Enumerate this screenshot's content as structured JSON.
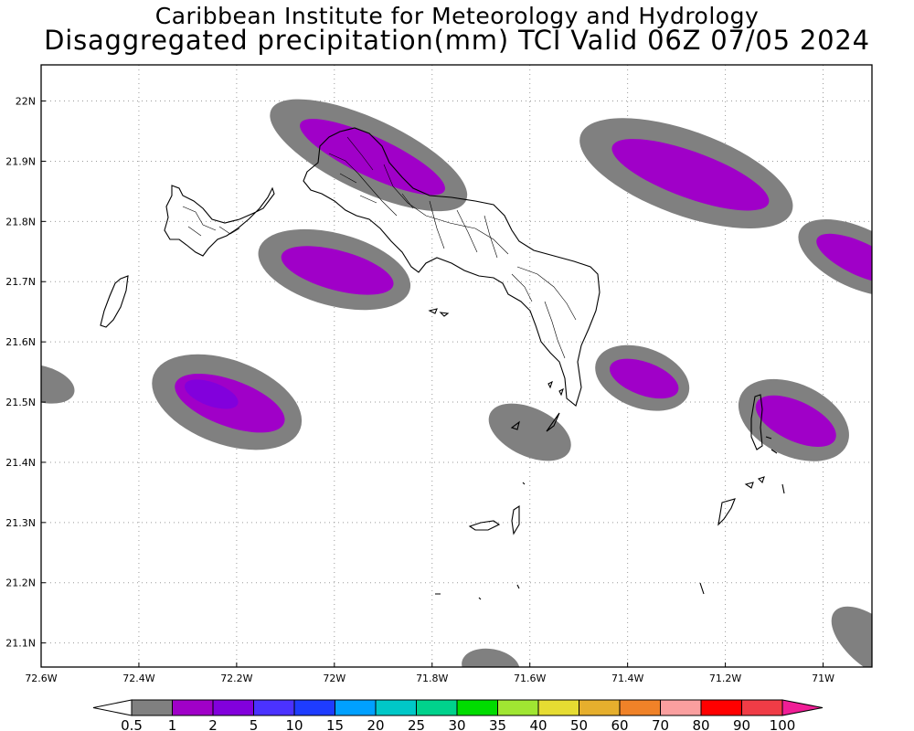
{
  "header": {
    "line1": "Caribbean Institute for Meteorology and Hydrology",
    "line2": "Disaggregated precipitation(mm) TCI Valid 06Z 07/05 2024"
  },
  "map": {
    "lon_range": [
      -72.6,
      -70.9
    ],
    "lat_range": [
      21.06,
      22.06
    ],
    "lon_ticks": [
      {
        "v": -72.6,
        "label": "72.6W"
      },
      {
        "v": -72.4,
        "label": "72.4W"
      },
      {
        "v": -72.2,
        "label": "72.2W"
      },
      {
        "v": -72.0,
        "label": "72W"
      },
      {
        "v": -71.8,
        "label": "71.8W"
      },
      {
        "v": -71.6,
        "label": "71.6W"
      },
      {
        "v": -71.4,
        "label": "71.4W"
      },
      {
        "v": -71.2,
        "label": "71.2W"
      },
      {
        "v": -71.0,
        "label": "71W"
      }
    ],
    "lat_ticks": [
      {
        "v": 22.0,
        "label": "22N"
      },
      {
        "v": 21.9,
        "label": "21.9N"
      },
      {
        "v": 21.8,
        "label": "21.8N"
      },
      {
        "v": 21.7,
        "label": "21.7N"
      },
      {
        "v": 21.6,
        "label": "21.6N"
      },
      {
        "v": 21.5,
        "label": "21.5N"
      },
      {
        "v": 21.4,
        "label": "21.4N"
      },
      {
        "v": 21.3,
        "label": "21.3N"
      },
      {
        "v": 21.2,
        "label": "21.2N"
      },
      {
        "v": 21.1,
        "label": "21.1N"
      }
    ],
    "grid": "dotted"
  },
  "precip_cells": [
    {
      "name": "cell-north-caicos",
      "lon": -71.93,
      "lat": 21.91,
      "major_deg": 0.22,
      "minor_deg": 0.06,
      "angle": 25,
      "max_class": "1-2"
    },
    {
      "name": "cell-northeast",
      "lon": -71.28,
      "lat": 21.88,
      "major_deg": 0.23,
      "minor_deg": 0.07,
      "angle": 20,
      "max_class": "1-2"
    },
    {
      "name": "cell-far-east",
      "lon": -70.93,
      "lat": 21.74,
      "major_deg": 0.13,
      "minor_deg": 0.05,
      "angle": 25,
      "max_class": "1-2"
    },
    {
      "name": "cell-west-caicos",
      "lon": -72.0,
      "lat": 21.72,
      "major_deg": 0.16,
      "minor_deg": 0.06,
      "angle": 15,
      "max_class": "1-2"
    },
    {
      "name": "cell-southwest",
      "lon": -72.22,
      "lat": 21.5,
      "major_deg": 0.16,
      "minor_deg": 0.07,
      "angle": 20,
      "max_class": "2-5"
    },
    {
      "name": "cell-east-caicos-south",
      "lon": -71.37,
      "lat": 21.54,
      "major_deg": 0.1,
      "minor_deg": 0.05,
      "angle": 20,
      "max_class": "1-2"
    },
    {
      "name": "cell-grand-turk",
      "lon": -71.06,
      "lat": 21.47,
      "major_deg": 0.12,
      "minor_deg": 0.06,
      "angle": 25,
      "max_class": "1-2"
    },
    {
      "name": "cell-south-caicos",
      "lon": -71.6,
      "lat": 21.45,
      "major_deg": 0.09,
      "minor_deg": 0.04,
      "angle": 25,
      "max_class": "0.5-1"
    },
    {
      "name": "cell-far-west",
      "lon": -72.6,
      "lat": 21.53,
      "major_deg": 0.07,
      "minor_deg": 0.03,
      "angle": 15,
      "max_class": "0.5-1"
    },
    {
      "name": "cell-bottom-right",
      "lon": -70.9,
      "lat": 21.1,
      "major_deg": 0.1,
      "minor_deg": 0.04,
      "angle": 40,
      "max_class": "0.5-1"
    },
    {
      "name": "cell-bottom-center",
      "lon": -71.68,
      "lat": 21.06,
      "major_deg": 0.06,
      "minor_deg": 0.03,
      "angle": 10,
      "max_class": "0.5-1"
    }
  ],
  "colorbar": {
    "labels": [
      "0.5",
      "1",
      "2",
      "5",
      "10",
      "15",
      "20",
      "25",
      "30",
      "35",
      "40",
      "50",
      "60",
      "70",
      "80",
      "90",
      "100"
    ],
    "colors": [
      "#808080",
      "#a000c8",
      "#8200dc",
      "#4b32ff",
      "#1e3cff",
      "#00a0ff",
      "#00c8c8",
      "#00d28c",
      "#00dc00",
      "#a0e632",
      "#e6dc32",
      "#e6af2d",
      "#f08228",
      "#fa9f9f",
      "#ff0000",
      "#f03c46"
    ],
    "low_color": "#ffffff",
    "high_color": "#f01e96"
  }
}
